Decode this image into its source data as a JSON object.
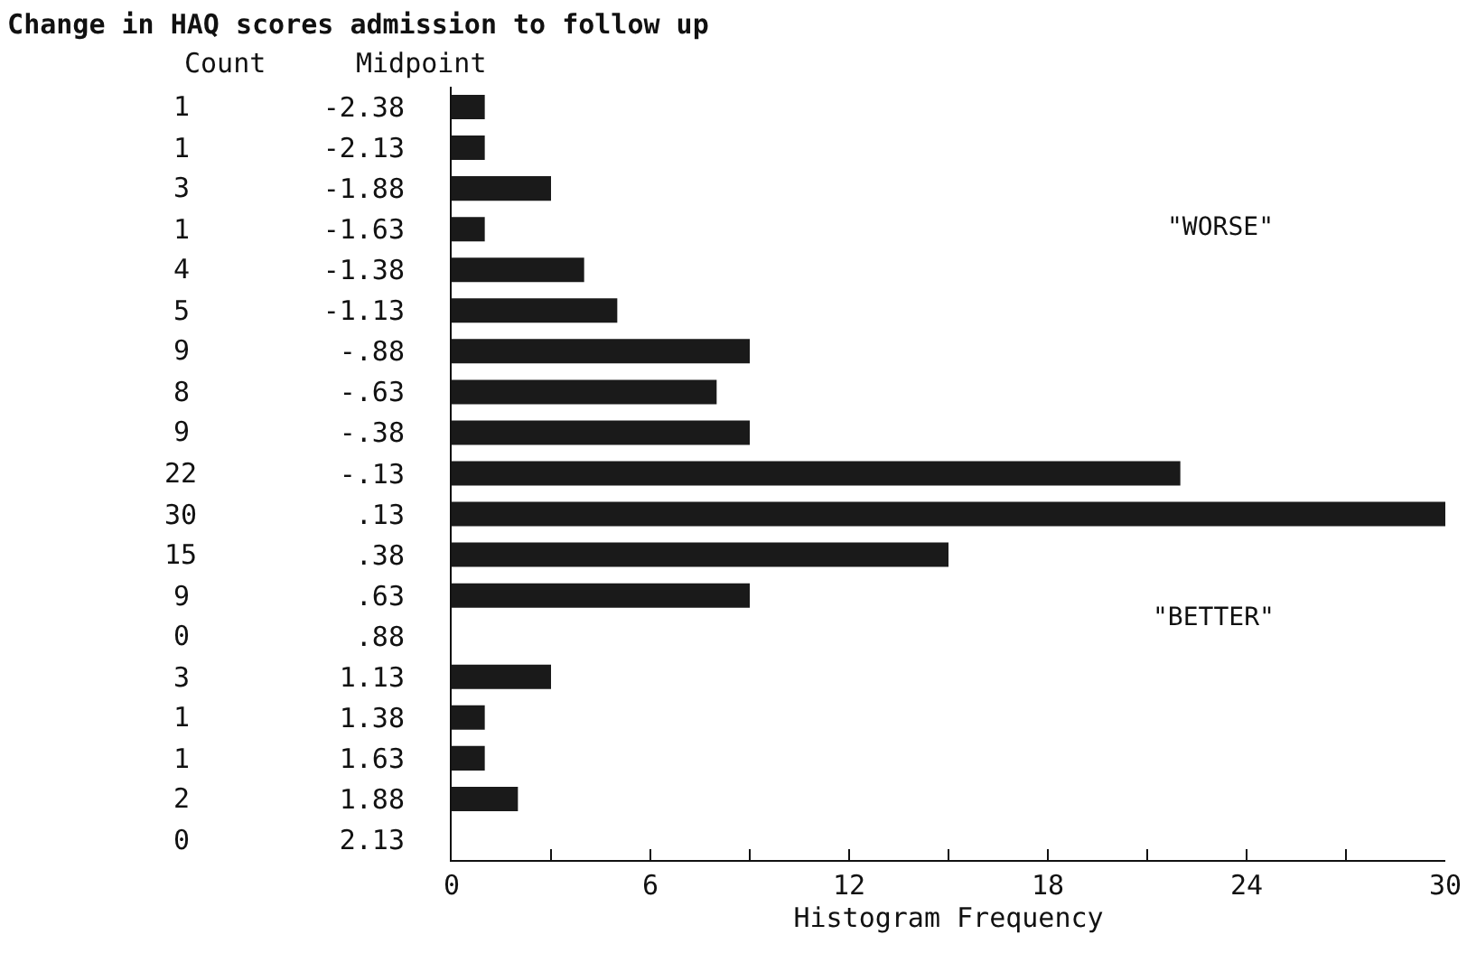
{
  "chart_data": {
    "type": "bar",
    "orientation": "horizontal",
    "title": "Change in HAQ scores admission to follow up",
    "ylabel": "Midpoint",
    "xlabel": "Histogram Frequency",
    "categories": [
      "-2.38",
      "-2.13",
      "-1.88",
      "-1.63",
      "-1.38",
      "-1.13",
      "-.88",
      "-.63",
      "-.38",
      "-.13",
      ".13",
      ".38",
      ".63",
      ".88",
      "1.13",
      "1.38",
      "1.63",
      "1.88",
      "2.13"
    ],
    "values": [
      1,
      1,
      3,
      1,
      4,
      5,
      9,
      8,
      9,
      22,
      30,
      15,
      9,
      0,
      3,
      1,
      1,
      2,
      0
    ],
    "color": "#1a1a1a",
    "data_labels": true,
    "xlim": [
      0,
      30
    ],
    "xticks": [
      0,
      {
        "value": 3,
        "label": null
      },
      6,
      {
        "value": 9,
        "label": null
      },
      12,
      {
        "value": 15,
        "label": null
      },
      18,
      {
        "value": 21,
        "label": null
      },
      24,
      {
        "value": 27,
        "label": null
      },
      30
    ],
    "annotations": [
      "Count",
      "\"WORSE\"",
      "\"BETTER\""
    ],
    "grid": false
  }
}
